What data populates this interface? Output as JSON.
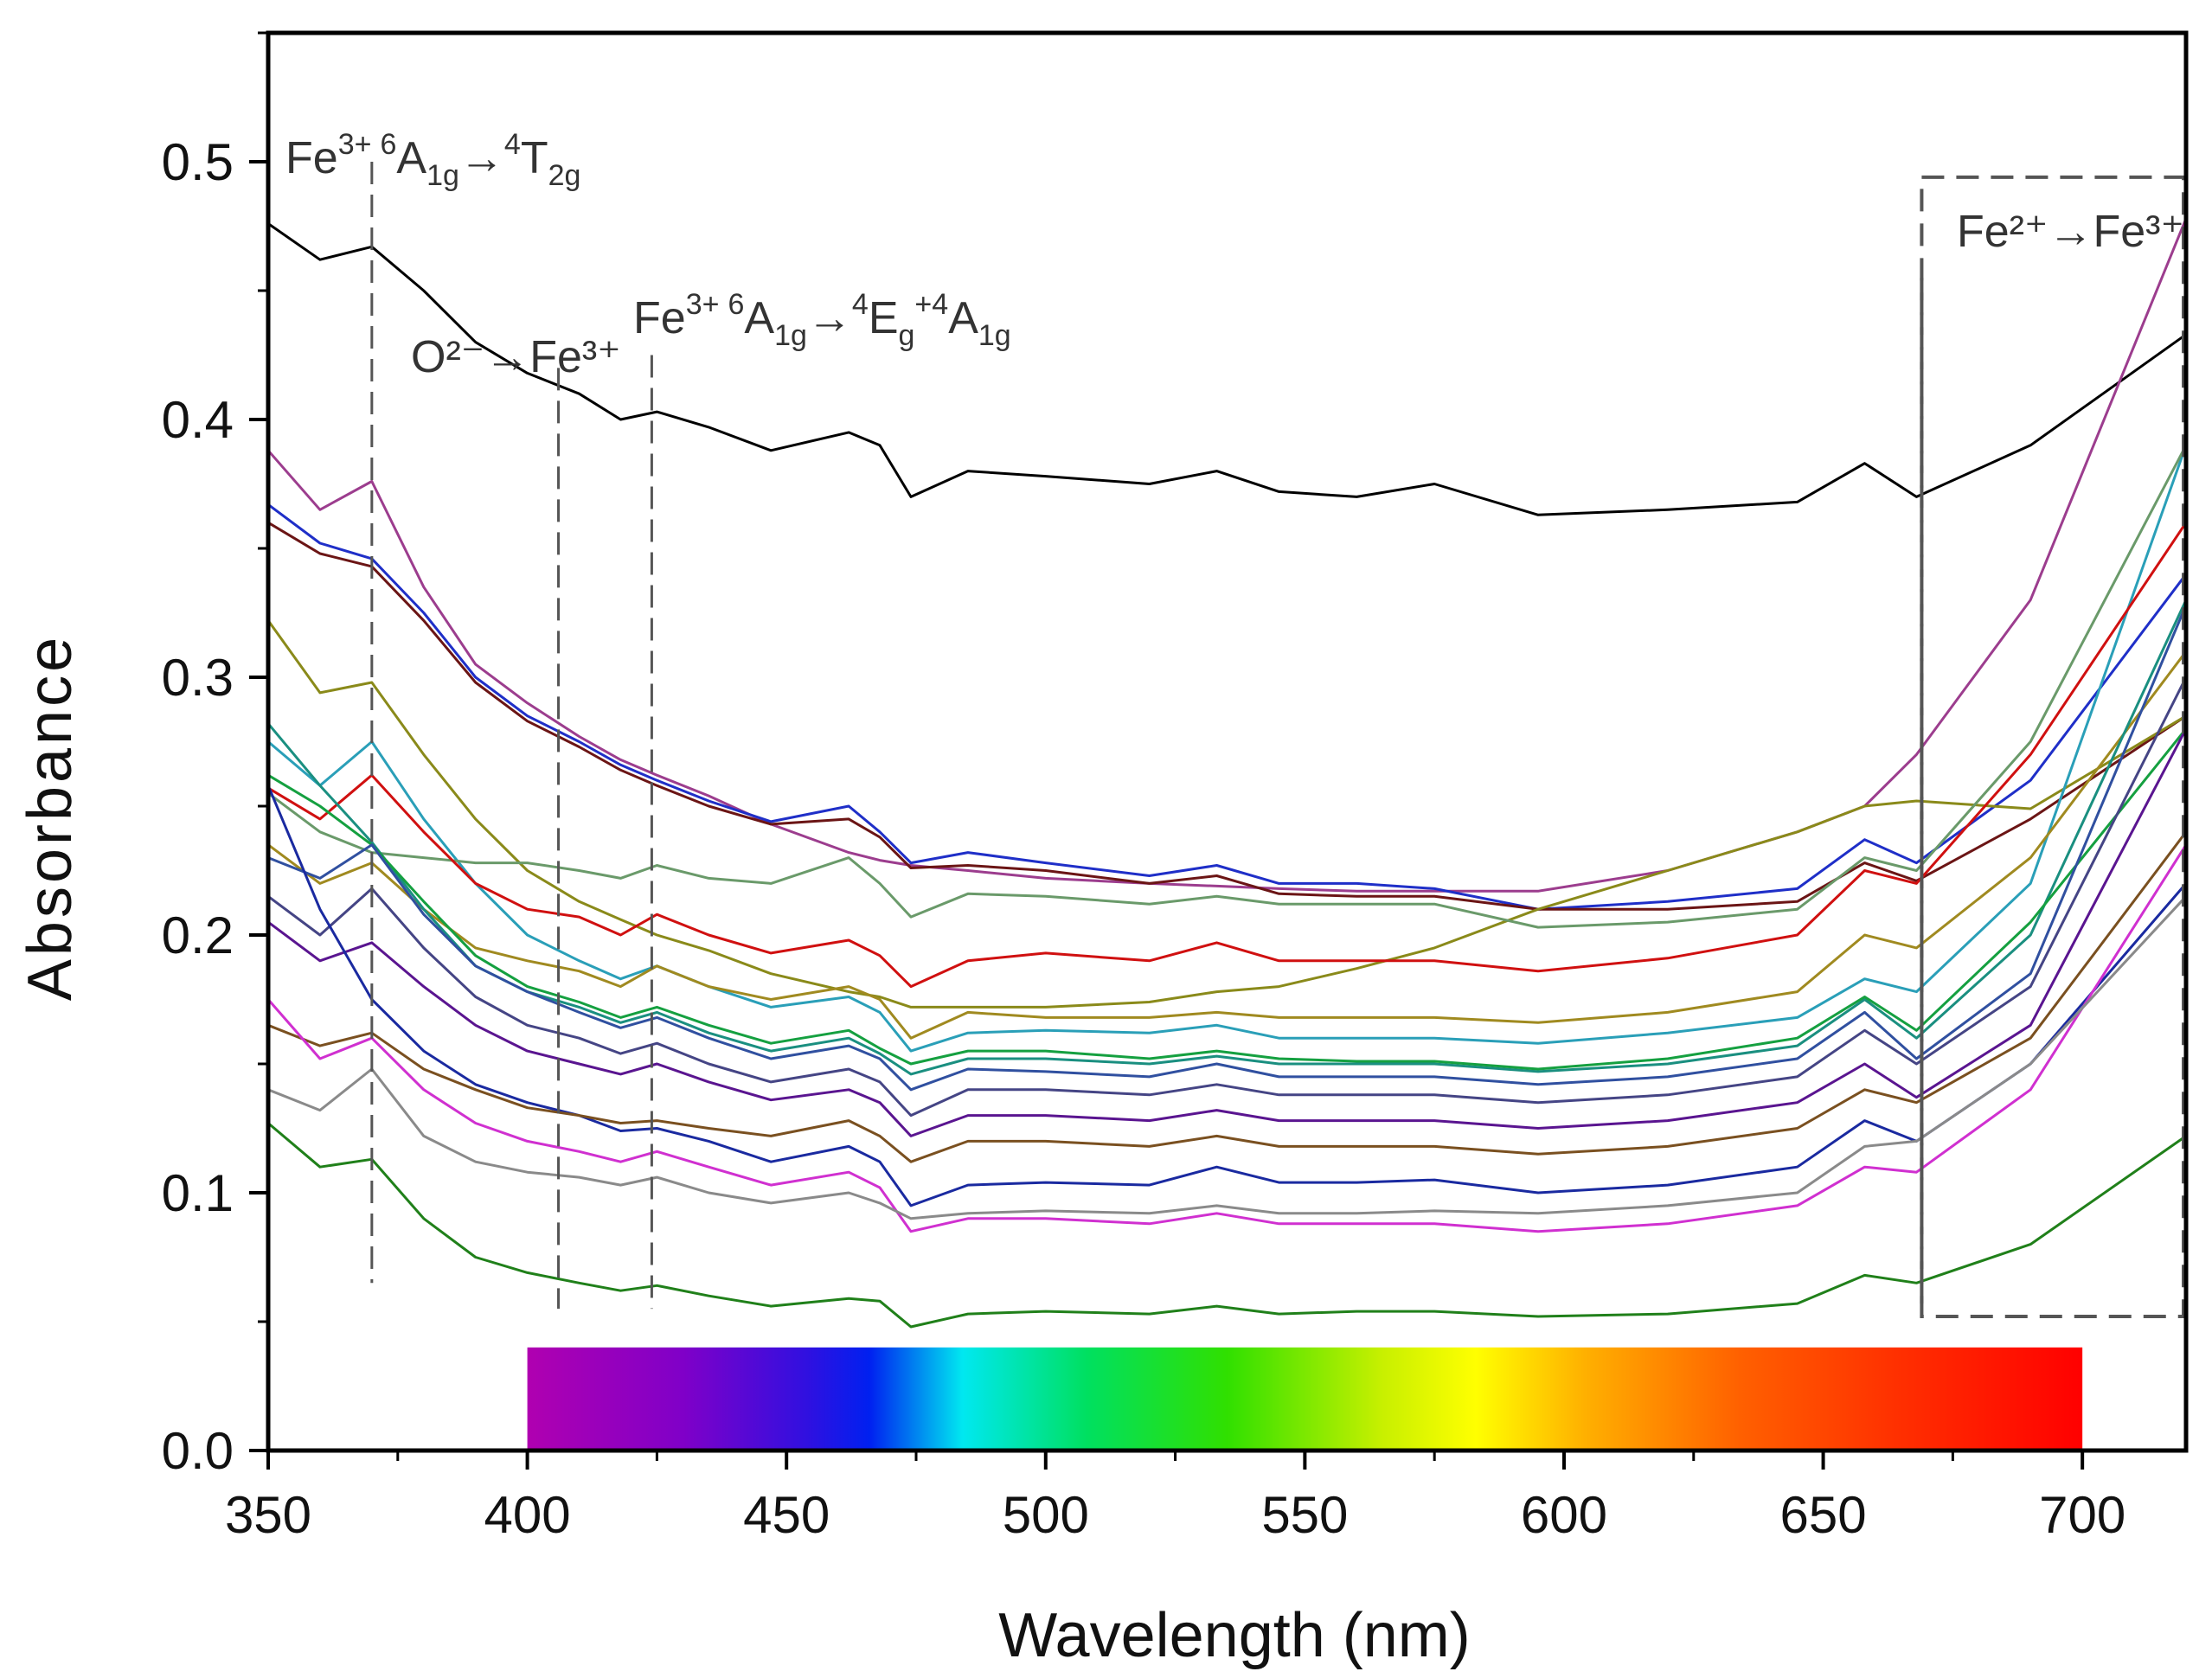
{
  "chart_data": {
    "type": "line",
    "xlabel": "Wavelength (nm)",
    "ylabel": "Absorbance",
    "xlim": [
      350,
      720
    ],
    "ylim": [
      0,
      0.55
    ],
    "x_ticks": [
      350,
      400,
      450,
      500,
      550,
      600,
      650,
      700
    ],
    "y_ticks": [
      0.0,
      0.1,
      0.2,
      0.3,
      0.4,
      0.5
    ],
    "x_tick_labels": [
      "350",
      "400",
      "450",
      "500",
      "550",
      "600",
      "650",
      "700"
    ],
    "y_tick_labels": [
      "0.0",
      "0.1",
      "0.2",
      "0.3",
      "0.4",
      "0.5"
    ],
    "grid": false,
    "legend": "none",
    "x": [
      350,
      360,
      370,
      380,
      390,
      400,
      410,
      418,
      425,
      435,
      447,
      462,
      468,
      474,
      485,
      500,
      520,
      533,
      545,
      560,
      575,
      595,
      620,
      645,
      658,
      668,
      690,
      720
    ],
    "series": [
      {
        "color": "#000000",
        "values": [
          0.476,
          0.462,
          0.467,
          0.45,
          0.43,
          0.418,
          0.41,
          0.4,
          0.403,
          0.397,
          0.388,
          0.395,
          0.39,
          0.37,
          0.38,
          0.378,
          0.375,
          0.38,
          0.372,
          0.37,
          0.375,
          0.363,
          0.365,
          0.368,
          0.383,
          0.37,
          0.39,
          0.433
        ]
      },
      {
        "color": "#9c3d8e",
        "values": [
          0.388,
          0.365,
          0.376,
          0.335,
          0.305,
          0.29,
          0.277,
          0.268,
          0.262,
          0.254,
          0.243,
          0.232,
          0.229,
          0.227,
          0.225,
          0.222,
          0.22,
          0.219,
          0.218,
          0.217,
          0.217,
          0.217,
          0.225,
          0.24,
          0.25,
          0.27,
          0.33,
          0.478
        ]
      },
      {
        "color": "#1f2fc8",
        "values": [
          0.367,
          0.352,
          0.346,
          0.325,
          0.3,
          0.285,
          0.275,
          0.266,
          0.26,
          0.252,
          0.244,
          0.25,
          0.24,
          0.228,
          0.232,
          0.228,
          0.223,
          0.227,
          0.22,
          0.22,
          0.218,
          0.21,
          0.213,
          0.218,
          0.237,
          0.228,
          0.26,
          0.34
        ]
      },
      {
        "color": "#6b1515",
        "values": [
          0.36,
          0.348,
          0.343,
          0.322,
          0.298,
          0.283,
          0.273,
          0.264,
          0.258,
          0.25,
          0.243,
          0.245,
          0.238,
          0.226,
          0.227,
          0.225,
          0.22,
          0.223,
          0.216,
          0.215,
          0.215,
          0.21,
          0.21,
          0.213,
          0.228,
          0.221,
          0.245,
          0.285
        ]
      },
      {
        "color": "#8a8a1a",
        "values": [
          0.322,
          0.294,
          0.298,
          0.27,
          0.245,
          0.225,
          0.213,
          0.206,
          0.2,
          0.194,
          0.185,
          0.178,
          0.176,
          0.172,
          0.172,
          0.172,
          0.174,
          0.178,
          0.18,
          0.187,
          0.195,
          0.21,
          0.225,
          0.24,
          0.25,
          0.252,
          0.249,
          0.285
        ]
      },
      {
        "color": "#2a9fb8",
        "values": [
          0.275,
          0.258,
          0.275,
          0.245,
          0.22,
          0.2,
          0.19,
          0.183,
          0.188,
          0.18,
          0.172,
          0.176,
          0.17,
          0.155,
          0.162,
          0.163,
          0.162,
          0.165,
          0.16,
          0.16,
          0.16,
          0.158,
          0.162,
          0.168,
          0.183,
          0.178,
          0.22,
          0.39
        ]
      },
      {
        "color": "#6a9a6a",
        "values": [
          0.255,
          0.24,
          0.232,
          0.23,
          0.228,
          0.228,
          0.225,
          0.222,
          0.227,
          0.222,
          0.22,
          0.23,
          0.22,
          0.207,
          0.216,
          0.215,
          0.212,
          0.215,
          0.212,
          0.212,
          0.212,
          0.203,
          0.205,
          0.21,
          0.23,
          0.225,
          0.275,
          0.39
        ]
      },
      {
        "color": "#d01010",
        "values": [
          0.257,
          0.245,
          0.262,
          0.24,
          0.22,
          0.21,
          0.207,
          0.2,
          0.208,
          0.2,
          0.193,
          0.198,
          0.192,
          0.18,
          0.19,
          0.193,
          0.19,
          0.197,
          0.19,
          0.19,
          0.19,
          0.186,
          0.191,
          0.2,
          0.225,
          0.22,
          0.27,
          0.36
        ]
      },
      {
        "color": "#a08a20",
        "values": [
          0.235,
          0.22,
          0.228,
          0.21,
          0.195,
          0.19,
          0.186,
          0.18,
          0.188,
          0.18,
          0.175,
          0.18,
          0.175,
          0.16,
          0.17,
          0.168,
          0.168,
          0.17,
          0.168,
          0.168,
          0.168,
          0.166,
          0.17,
          0.178,
          0.2,
          0.195,
          0.23,
          0.31
        ]
      },
      {
        "color": "#1a8f80",
        "values": [
          0.282,
          0.258,
          0.236,
          0.21,
          0.188,
          0.178,
          0.172,
          0.166,
          0.17,
          0.162,
          0.155,
          0.16,
          0.154,
          0.146,
          0.152,
          0.152,
          0.15,
          0.153,
          0.15,
          0.15,
          0.15,
          0.147,
          0.15,
          0.157,
          0.175,
          0.16,
          0.2,
          0.33
        ]
      },
      {
        "color": "#15a040",
        "values": [
          0.262,
          0.25,
          0.235,
          0.213,
          0.192,
          0.18,
          0.174,
          0.168,
          0.172,
          0.165,
          0.158,
          0.163,
          0.156,
          0.15,
          0.155,
          0.155,
          0.152,
          0.155,
          0.152,
          0.151,
          0.151,
          0.148,
          0.152,
          0.16,
          0.176,
          0.163,
          0.205,
          0.28
        ]
      },
      {
        "color": "#3050a0",
        "values": [
          0.23,
          0.222,
          0.235,
          0.208,
          0.188,
          0.178,
          0.17,
          0.164,
          0.168,
          0.16,
          0.152,
          0.157,
          0.152,
          0.14,
          0.148,
          0.147,
          0.145,
          0.15,
          0.145,
          0.145,
          0.145,
          0.142,
          0.145,
          0.152,
          0.17,
          0.152,
          0.185,
          0.328
        ]
      },
      {
        "color": "#454585",
        "values": [
          0.215,
          0.2,
          0.218,
          0.195,
          0.176,
          0.165,
          0.16,
          0.154,
          0.158,
          0.15,
          0.143,
          0.148,
          0.143,
          0.13,
          0.14,
          0.14,
          0.138,
          0.142,
          0.138,
          0.138,
          0.138,
          0.135,
          0.138,
          0.145,
          0.163,
          0.15,
          0.18,
          0.3
        ]
      },
      {
        "color": "#5a1590",
        "values": [
          0.205,
          0.19,
          0.197,
          0.18,
          0.165,
          0.155,
          0.15,
          0.146,
          0.15,
          0.143,
          0.136,
          0.14,
          0.135,
          0.122,
          0.13,
          0.13,
          0.128,
          0.132,
          0.128,
          0.128,
          0.128,
          0.125,
          0.128,
          0.135,
          0.15,
          0.137,
          0.165,
          0.28
        ]
      },
      {
        "color": "#1a2aa0",
        "values": [
          0.258,
          0.21,
          0.175,
          0.155,
          0.142,
          0.135,
          0.13,
          0.124,
          0.125,
          0.12,
          0.112,
          0.118,
          0.112,
          0.095,
          0.103,
          0.104,
          0.103,
          0.11,
          0.104,
          0.104,
          0.105,
          0.1,
          0.103,
          0.11,
          0.128,
          0.12,
          0.15,
          0.22
        ]
      },
      {
        "color": "#7a5020",
        "values": [
          0.165,
          0.157,
          0.162,
          0.148,
          0.14,
          0.133,
          0.13,
          0.127,
          0.128,
          0.125,
          0.122,
          0.128,
          0.122,
          0.112,
          0.12,
          0.12,
          0.118,
          0.122,
          0.118,
          0.118,
          0.118,
          0.115,
          0.118,
          0.125,
          0.14,
          0.135,
          0.16,
          0.24
        ]
      },
      {
        "color": "#d030d0",
        "values": [
          0.175,
          0.152,
          0.16,
          0.14,
          0.127,
          0.12,
          0.116,
          0.112,
          0.116,
          0.11,
          0.103,
          0.108,
          0.102,
          0.085,
          0.09,
          0.09,
          0.088,
          0.092,
          0.088,
          0.088,
          0.088,
          0.085,
          0.088,
          0.095,
          0.11,
          0.108,
          0.14,
          0.235
        ]
      },
      {
        "color": "#8a8a8a",
        "values": [
          0.14,
          0.132,
          0.148,
          0.122,
          0.112,
          0.108,
          0.106,
          0.103,
          0.106,
          0.1,
          0.096,
          0.1,
          0.096,
          0.09,
          0.092,
          0.093,
          0.092,
          0.095,
          0.092,
          0.092,
          0.093,
          0.092,
          0.095,
          0.1,
          0.118,
          0.12,
          0.15,
          0.215
        ]
      },
      {
        "color": "#20801a",
        "values": [
          0.127,
          0.11,
          0.113,
          0.09,
          0.075,
          0.069,
          0.065,
          0.062,
          0.064,
          0.06,
          0.056,
          0.059,
          0.058,
          0.048,
          0.053,
          0.054,
          0.053,
          0.056,
          0.053,
          0.054,
          0.054,
          0.052,
          0.053,
          0.057,
          0.068,
          0.065,
          0.08,
          0.122
        ]
      }
    ],
    "annotations": [
      {
        "main": "Fe",
        "sup": "3+",
        "pre_sup": "6",
        "term": "A",
        "sub": "1g",
        "arrow": "→",
        "post_sup": "4",
        "term2": "T",
        "sub2": "2g"
      },
      {
        "text": "O²⁻→Fe³⁺"
      },
      {
        "main": "Fe",
        "sup": "3+",
        "pre_sup": "6",
        "term": "A",
        "sub": "1g",
        "arrow": "→",
        "post_sup": "4",
        "term2": "E",
        "sub2": "g",
        "plus": "+",
        "post_sup3": "4",
        "term3": "A",
        "sub3": "1g"
      },
      {
        "text": "Fe²⁺→Fe³⁺"
      }
    ],
    "dashed_markers_nm": [
      370,
      406,
      424,
      669
    ],
    "spectrum_bar": {
      "from_nm": 400,
      "to_nm": 700,
      "y_from": 0.0,
      "y_to": 0.04
    }
  }
}
